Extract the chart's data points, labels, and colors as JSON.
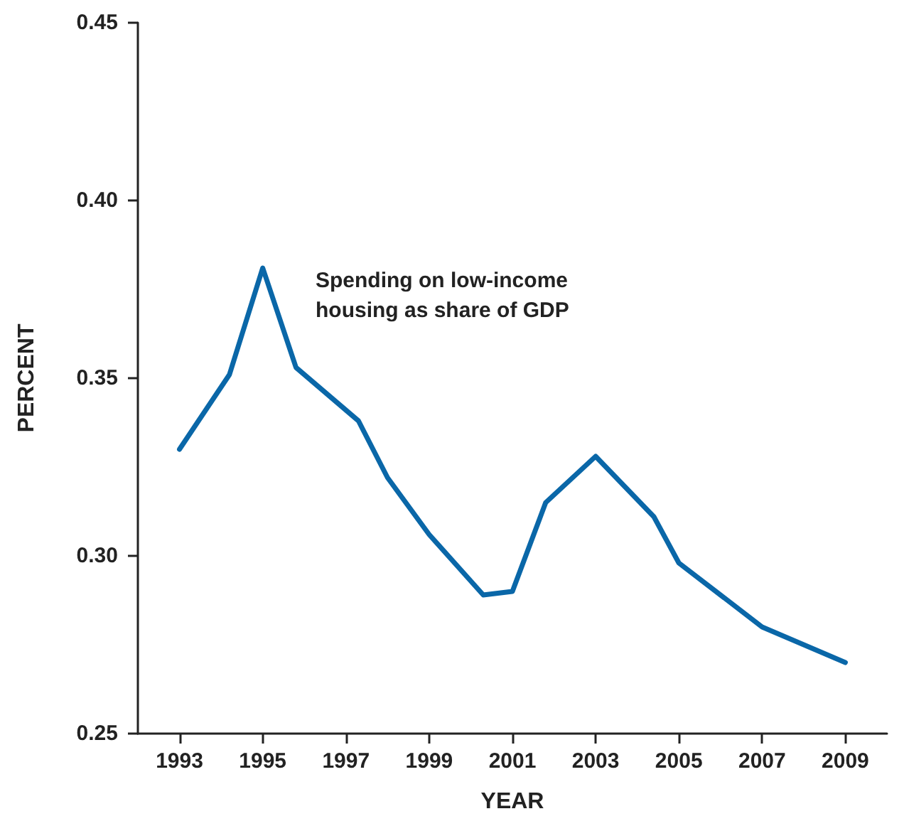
{
  "chart_data": {
    "type": "line",
    "xlabel": "YEAR",
    "ylabel": "PERCENT",
    "annotations": [
      "Spending on low-income\nhousing as share of GDP"
    ],
    "x": [
      1993,
      1994.2,
      1995,
      1995.8,
      1997.3,
      1998,
      1999,
      2000.3,
      2001,
      2001.8,
      2003,
      2004.4,
      2005,
      2007,
      2009
    ],
    "series": [
      {
        "color": "#0a67a8",
        "values": [
          0.33,
          0.351,
          0.381,
          0.353,
          0.338,
          0.322,
          0.306,
          0.289,
          0.29,
          0.315,
          0.328,
          0.311,
          0.298,
          0.28,
          0.27
        ]
      }
    ],
    "xlim": [
      1992,
      2010
    ],
    "xticks": [
      {
        "value": 1993,
        "label": "1993"
      },
      {
        "value": 1995,
        "label": "1995"
      },
      {
        "value": 1997,
        "label": "1997"
      },
      {
        "value": 1999,
        "label": "1999"
      },
      {
        "value": 2001,
        "label": "2001"
      },
      {
        "value": 2003,
        "label": "2003"
      },
      {
        "value": 2005,
        "label": "2005"
      },
      {
        "value": 2007,
        "label": "2007"
      },
      {
        "value": 2009,
        "label": "2009"
      }
    ],
    "ylim": [
      0.25,
      0.45
    ],
    "yticks": [
      {
        "value": 0.25,
        "label": "0.25"
      },
      {
        "value": 0.3,
        "label": "0.30"
      },
      {
        "value": 0.35,
        "label": "0.35"
      },
      {
        "value": 0.4,
        "label": "0.40"
      },
      {
        "value": 0.45,
        "label": "0.45"
      }
    ],
    "grid": false,
    "marker": "none",
    "line_style": "solid"
  }
}
